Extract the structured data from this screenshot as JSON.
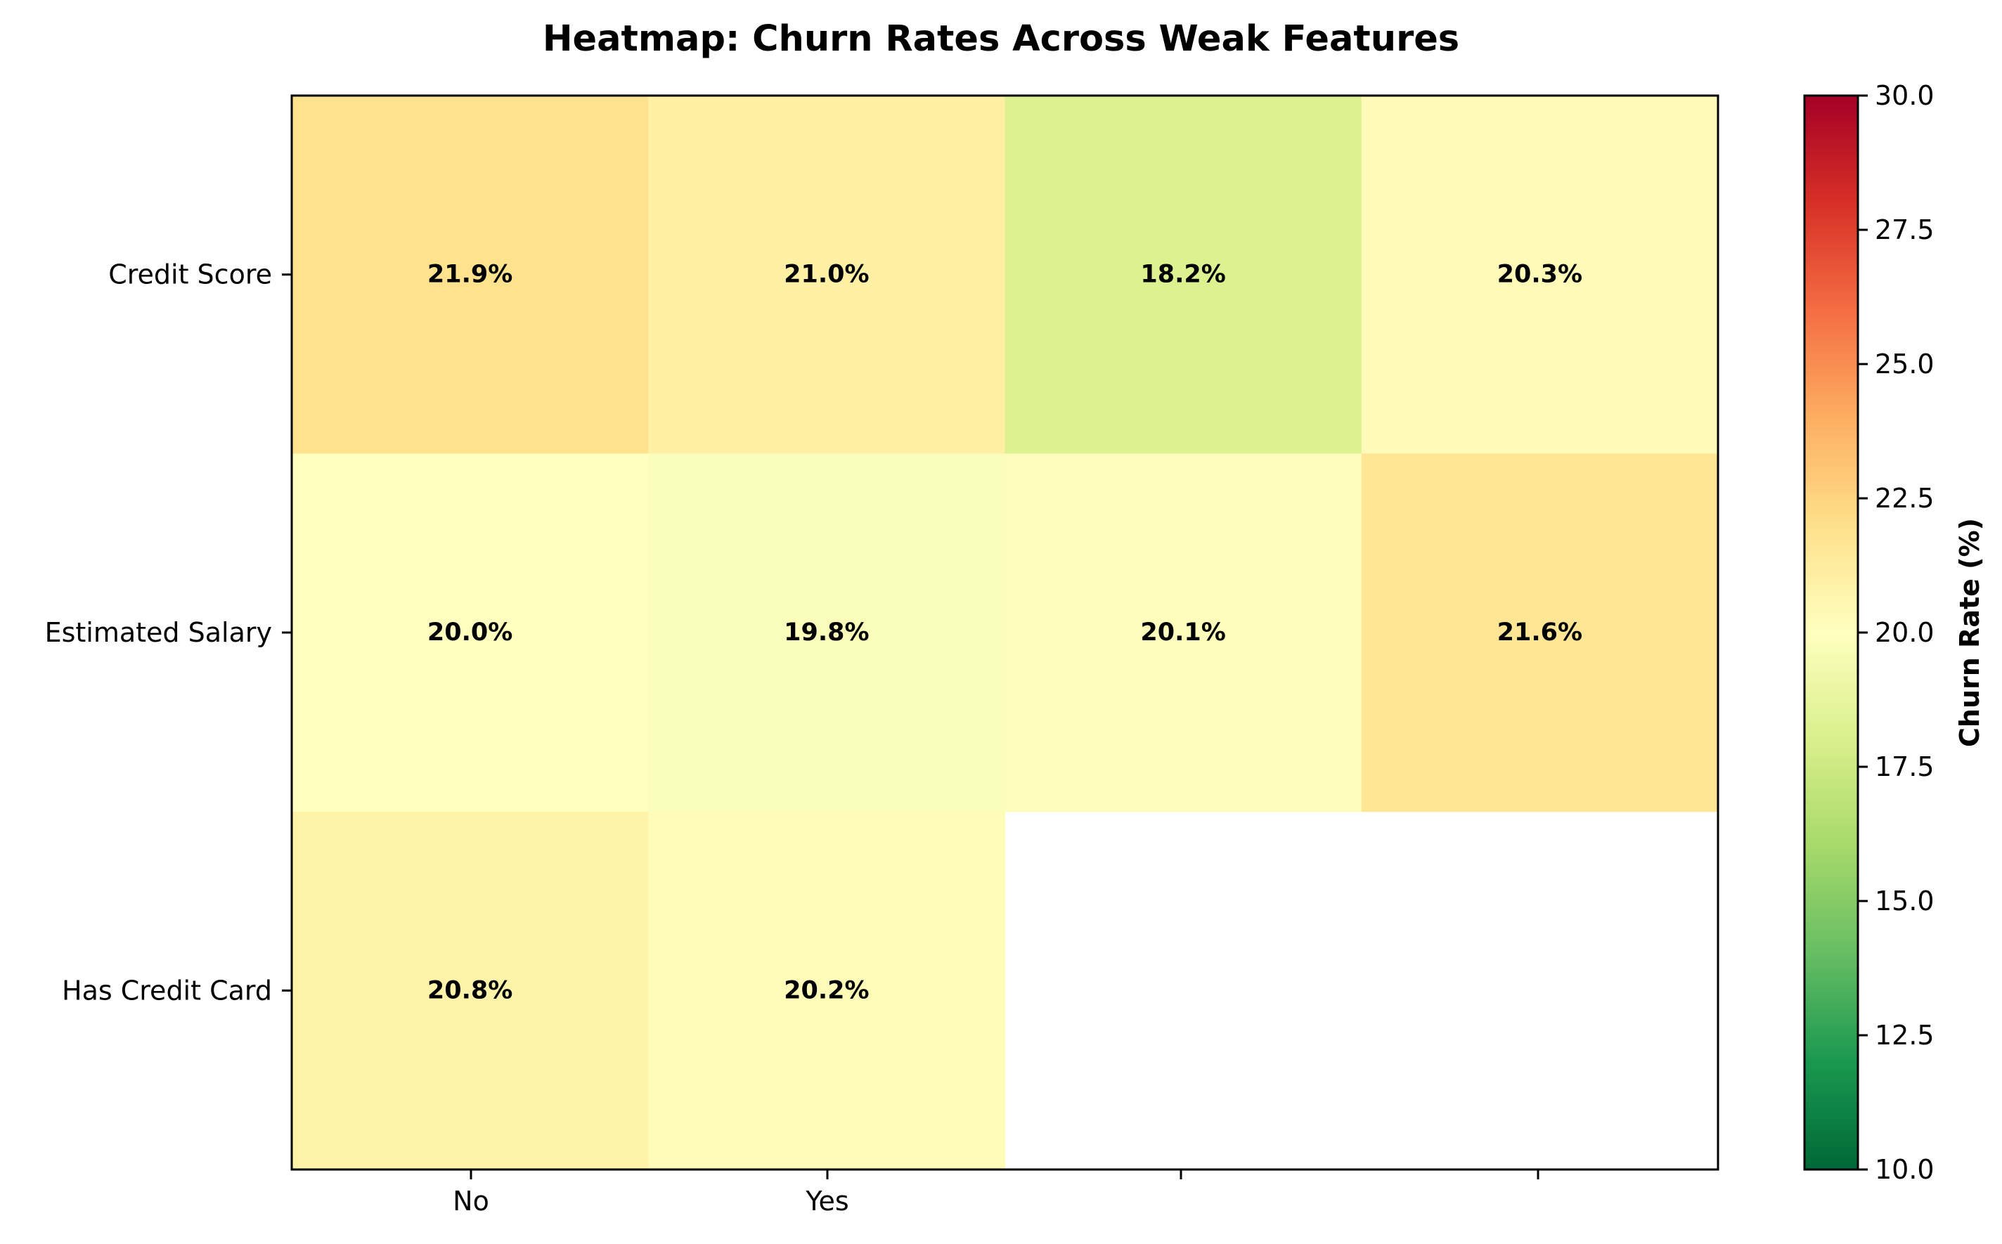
{
  "chart_data": {
    "type": "heatmap",
    "title": "Heatmap: Churn Rates Across Weak Features",
    "rows": [
      "Credit Score",
      "Estimated Salary",
      "Has Credit Card"
    ],
    "columns": [
      "No",
      "Yes",
      "",
      ""
    ],
    "values": [
      [
        21.9,
        21.0,
        18.2,
        20.3
      ],
      [
        20.0,
        19.8,
        20.1,
        21.6
      ],
      [
        20.8,
        20.2,
        null,
        null
      ]
    ],
    "value_labels": [
      [
        "21.9%",
        "21.0%",
        "18.2%",
        "20.3%"
      ],
      [
        "20.0%",
        "19.8%",
        "20.1%",
        "21.6%"
      ],
      [
        "20.8%",
        "20.2%",
        "",
        ""
      ]
    ],
    "colormap": "RdYlGn_r",
    "vmin": 10,
    "vmax": 30,
    "colorbar": {
      "label": "Churn Rate (%)",
      "ticks": [
        "10.0",
        "12.5",
        "15.0",
        "17.5",
        "20.0",
        "22.5",
        "25.0",
        "27.5",
        "30.0"
      ]
    },
    "grid": false
  }
}
